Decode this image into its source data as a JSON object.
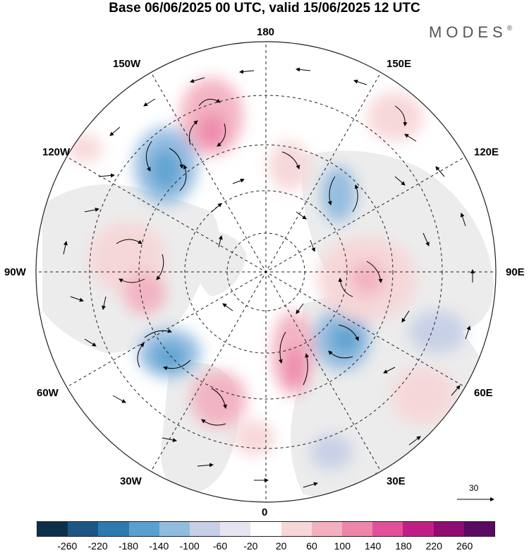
{
  "title": "Base 06/06/2025 00 UTC, valid 15/06/2025 12 UTC",
  "brand": "MODES",
  "brand_mark": "®",
  "map": {
    "projection": "polar stereographic (north pole)",
    "longitude_labels": {
      "top": "180",
      "bottom": "0",
      "left": "90W",
      "right": "90E",
      "upper_left_1": "150W",
      "upper_left_2": "120W",
      "lower_left_1": "60W",
      "lower_left_2": "30W",
      "upper_right_1": "150E",
      "upper_right_2": "120E",
      "lower_right_1": "60E",
      "lower_right_2": "30E"
    },
    "reference_vector": "30",
    "colors": {
      "land": "#ececec",
      "ocean": "#ffffff",
      "grid": "#222222"
    }
  },
  "colorbar": {
    "tick_labels": [
      "-260",
      "-220",
      "-180",
      "-140",
      "-100",
      "-60",
      "-20",
      "20",
      "60",
      "100",
      "140",
      "180",
      "220",
      "260"
    ],
    "colors": [
      "#0d2f4a",
      "#1b5684",
      "#2c7ab0",
      "#5aa0cf",
      "#92bbe0",
      "#c6cfe6",
      "#e8e3f1",
      "#ffffff",
      "#f7d6d8",
      "#f3b1c0",
      "#ee86aa",
      "#e2509a",
      "#c21f86",
      "#8f0c72",
      "#5a0a63"
    ]
  }
}
